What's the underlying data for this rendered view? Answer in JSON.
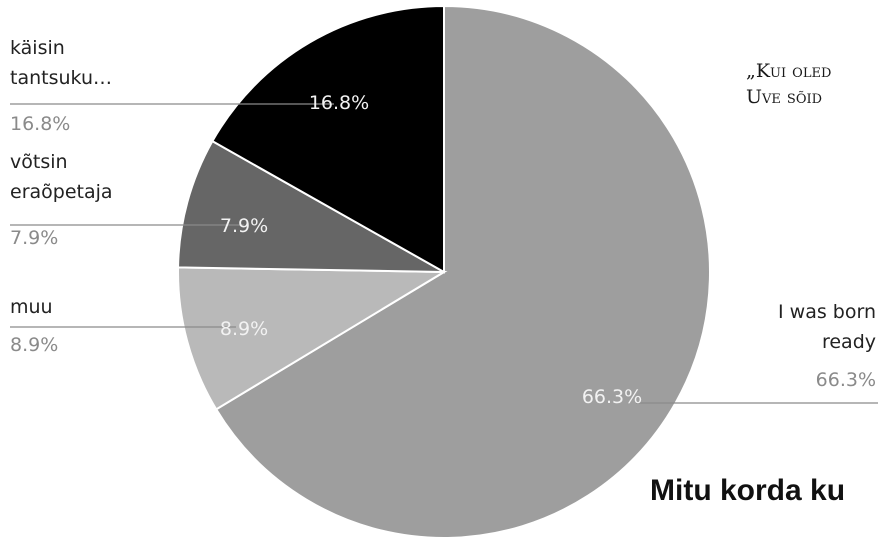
{
  "chart_data": {
    "type": "pie",
    "slices": [
      {
        "label": "I was born ready",
        "label_lines": [
          "I was born",
          "ready"
        ],
        "value": 66.3,
        "display": "66.3%",
        "color": "#9e9e9e",
        "text_color": "#f2f2f2"
      },
      {
        "label": "muu",
        "label_lines": [
          "muu"
        ],
        "value": 8.9,
        "display": "8.9%",
        "color": "#b9b9b9",
        "text_color": "#f2f2f2"
      },
      {
        "label": "võtsin eraõpetaja",
        "label_lines": [
          "võtsin",
          "eraõpetaja"
        ],
        "value": 7.9,
        "display": "7.9%",
        "color": "#666666",
        "text_color": "#f2f2f2"
      },
      {
        "label": "käisin tantsuku…",
        "label_lines": [
          "käisin",
          "tantsuku…"
        ],
        "value": 16.8,
        "display": "16.8%",
        "color": "#000000",
        "text_color": "#f2f2f2"
      }
    ]
  },
  "quote": {
    "line1": "„Kui oled",
    "line2": "Uve sõid"
  },
  "section_heading": "Mitu korda ku"
}
